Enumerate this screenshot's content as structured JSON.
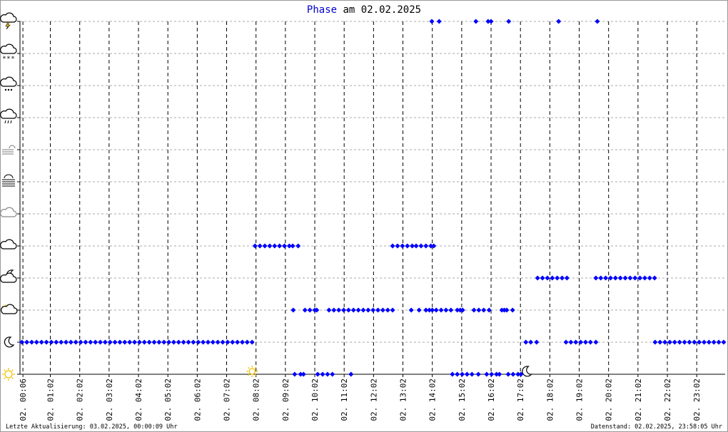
{
  "chart_data": {
    "type": "scatter",
    "title_parts": [
      "Phase",
      "am 02.02.2025"
    ],
    "footer_left": "Letzte Aktualisierung: 03.02.2025, 00:00:09 Uhr",
    "footer_right": "Datenstand: 02.02.2025, 23:58:05 Uhr",
    "xlim": [
      0,
      1440
    ],
    "xticks": [
      {
        "value": 6,
        "label": "02. 00:06"
      },
      {
        "value": 62,
        "label": "02. 01:02"
      },
      {
        "value": 122,
        "label": "02. 02:02"
      },
      {
        "value": 182,
        "label": "02. 03:02"
      },
      {
        "value": 242,
        "label": "02. 04:02"
      },
      {
        "value": 302,
        "label": "02. 05:02"
      },
      {
        "value": 362,
        "label": "02. 06:02"
      },
      {
        "value": 422,
        "label": "02. 07:02"
      },
      {
        "value": 482,
        "label": "02. 08:02"
      },
      {
        "value": 542,
        "label": "02. 09:02"
      },
      {
        "value": 602,
        "label": "02. 10:02"
      },
      {
        "value": 662,
        "label": "02. 11:02"
      },
      {
        "value": 722,
        "label": "02. 12:02"
      },
      {
        "value": 782,
        "label": "02. 13:02"
      },
      {
        "value": 842,
        "label": "02. 14:02"
      },
      {
        "value": 902,
        "label": "02. 15:02"
      },
      {
        "value": 962,
        "label": "02. 16:02"
      },
      {
        "value": 1022,
        "label": "02. 17:02"
      },
      {
        "value": 1082,
        "label": "02. 18:02"
      },
      {
        "value": 1142,
        "label": "02. 19:02"
      },
      {
        "value": 1202,
        "label": "02. 20:02"
      },
      {
        "value": 1262,
        "label": "02. 21:02"
      },
      {
        "value": 1322,
        "label": "02. 22:02"
      },
      {
        "value": 1382,
        "label": "02. 23:02"
      }
    ],
    "ylim": [
      0,
      11
    ],
    "yticks": [
      0,
      1,
      2,
      3,
      4,
      5,
      6,
      7,
      8,
      9,
      10,
      11
    ],
    "grid": true,
    "sunrise": 474,
    "sunset": 1034,
    "series": [
      {
        "color": "#0000ff",
        "x": [
          4,
          14,
          24,
          34,
          44,
          54,
          64,
          74,
          84,
          94,
          104,
          114,
          124,
          134,
          144,
          154,
          164,
          174,
          184,
          194,
          204,
          214,
          224,
          234,
          244,
          254,
          264,
          274,
          284,
          294,
          304,
          314,
          324,
          334,
          344,
          354,
          364,
          374,
          384,
          394,
          404,
          414,
          424,
          434,
          444,
          454,
          464,
          474
        ],
        "values": [
          1,
          1,
          1,
          1,
          1,
          1,
          1,
          1,
          1,
          1,
          1,
          1,
          1,
          1,
          1,
          1,
          1,
          1,
          1,
          1,
          1,
          1,
          1,
          1,
          1,
          1,
          1,
          1,
          1,
          1,
          1,
          1,
          1,
          1,
          1,
          1,
          1,
          1,
          1,
          1,
          1,
          1,
          1,
          1,
          1,
          1,
          1,
          1
        ]
      },
      {
        "color": "#0000ff",
        "x": [
          480,
          490,
          500,
          510,
          520,
          530,
          540,
          550,
          557,
          568
        ],
        "values": [
          4,
          4,
          4,
          4,
          4,
          4,
          4,
          4,
          4,
          4
        ]
      },
      {
        "color": "#0000ff",
        "x": [
          558,
          582,
          592,
          602,
          606,
          631,
          641,
          651,
          661,
          671,
          681,
          691,
          701,
          711,
          721,
          731,
          741,
          751,
          761,
          799,
          815,
          829,
          836,
          842,
          850,
          860,
          870,
          880,
          893,
          899,
          904,
          927,
          937,
          947,
          958,
          984,
          989,
          994,
          1006
        ],
        "values": [
          2,
          2,
          2,
          2,
          2,
          2,
          2,
          2,
          2,
          2,
          2,
          2,
          2,
          2,
          2,
          2,
          2,
          2,
          2,
          2,
          2,
          2,
          2,
          2,
          2,
          2,
          2,
          2,
          2,
          2,
          2,
          2,
          2,
          2,
          2,
          2,
          2,
          2,
          2
        ]
      },
      {
        "color": "#0000ff",
        "x": [
          561,
          573,
          579,
          608,
          618,
          628,
          638,
          676,
          883,
          893,
          903,
          913,
          923,
          936,
          953,
          963,
          973,
          979,
          997,
          1007,
          1017,
          1023
        ],
        "values": [
          0,
          0,
          0,
          0,
          0,
          0,
          0,
          0,
          0,
          0,
          0,
          0,
          0,
          0,
          0,
          0,
          0,
          0,
          0,
          0,
          0,
          0
        ]
      },
      {
        "color": "#0000ff",
        "x": [
          761,
          771,
          781,
          791,
          801,
          809,
          819,
          829,
          839,
          845
        ],
        "values": [
          4,
          4,
          4,
          4,
          4,
          4,
          4,
          4,
          4,
          4
        ]
      },
      {
        "color": "#0000ff",
        "x": [
          1033,
          1043,
          1055,
          1115,
          1125,
          1135,
          1145,
          1155,
          1165,
          1176,
          1297,
          1307,
          1317,
          1327,
          1337,
          1347,
          1357,
          1367,
          1377,
          1387,
          1397,
          1407,
          1417,
          1427,
          1437
        ],
        "values": [
          1,
          1,
          1,
          1,
          1,
          1,
          1,
          1,
          1,
          1,
          1,
          1,
          1,
          1,
          1,
          1,
          1,
          1,
          1,
          1,
          1,
          1,
          1,
          1,
          1
        ]
      },
      {
        "color": "#0000ff",
        "x": [
          1057,
          1067,
          1077,
          1087,
          1097,
          1107,
          1117,
          1176,
          1186,
          1196,
          1206,
          1216,
          1226,
          1236,
          1246,
          1256,
          1266,
          1276,
          1286,
          1296
        ],
        "values": [
          3,
          3,
          3,
          3,
          3,
          3,
          3,
          3,
          3,
          3,
          3,
          3,
          3,
          3,
          3,
          3,
          3,
          3,
          3,
          3
        ]
      },
      {
        "color": "#0000ff",
        "x": [
          841,
          856,
          931,
          956,
          962,
          998,
          1100,
          1179
        ],
        "values": [
          11,
          11,
          11,
          11,
          11,
          11,
          11,
          11
        ]
      }
    ]
  }
}
